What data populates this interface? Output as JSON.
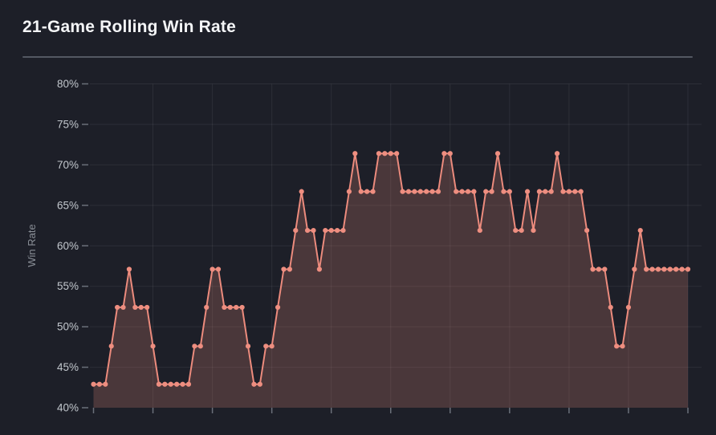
{
  "chart_data": {
    "type": "line",
    "title": "21-Game Rolling Win Rate",
    "ylabel": "Win Rate",
    "xlabel": "",
    "ylim": [
      40,
      80
    ],
    "ytick_step_pct": 5,
    "ytick_labels": [
      "40%",
      "45%",
      "50%",
      "55%",
      "60%",
      "65%",
      "70%",
      "75%",
      "80%"
    ],
    "xtick_count": 11,
    "xtick_every_n_points": 10,
    "xtick_labels_visible": false,
    "grid": true,
    "legend_position": "none",
    "marker": "circle",
    "area_fill": true,
    "series": [
      {
        "name": "21-game rolling win rate (%)",
        "values": [
          42.9,
          42.9,
          42.9,
          47.6,
          52.4,
          52.4,
          57.1,
          52.4,
          52.4,
          52.4,
          47.6,
          42.9,
          42.9,
          42.9,
          42.9,
          42.9,
          42.9,
          47.6,
          47.6,
          52.4,
          57.1,
          57.1,
          52.4,
          52.4,
          52.4,
          52.4,
          47.6,
          42.9,
          42.9,
          47.6,
          47.6,
          52.4,
          57.1,
          57.1,
          61.9,
          66.7,
          61.9,
          61.9,
          57.1,
          61.9,
          61.9,
          61.9,
          61.9,
          66.7,
          71.4,
          66.7,
          66.7,
          66.7,
          71.4,
          71.4,
          71.4,
          71.4,
          66.7,
          66.7,
          66.7,
          66.7,
          66.7,
          66.7,
          66.7,
          71.4,
          71.4,
          66.7,
          66.7,
          66.7,
          66.7,
          61.9,
          66.7,
          66.7,
          71.4,
          66.7,
          66.7,
          61.9,
          61.9,
          66.7,
          61.9,
          66.7,
          66.7,
          66.7,
          71.4,
          66.7,
          66.7,
          66.7,
          66.7,
          61.9,
          57.1,
          57.1,
          57.1,
          52.4,
          47.6,
          47.6,
          52.4,
          57.1,
          61.9,
          57.1,
          57.1,
          57.1,
          57.1,
          57.1,
          57.1,
          57.1,
          57.1
        ]
      }
    ],
    "colors": {
      "background": "#1d1f28",
      "line": "#ec8b7d",
      "marker": "#ee8e80",
      "area_fill": "rgba(236,139,125,0.22)",
      "grid": "rgba(255,255,255,0.07)",
      "tick": "#6b707a",
      "axis_text": "#c2c7cd",
      "yaxis_title_text": "#8a8f97",
      "title_text": "#f4f5f7",
      "divider": "#545862"
    }
  }
}
